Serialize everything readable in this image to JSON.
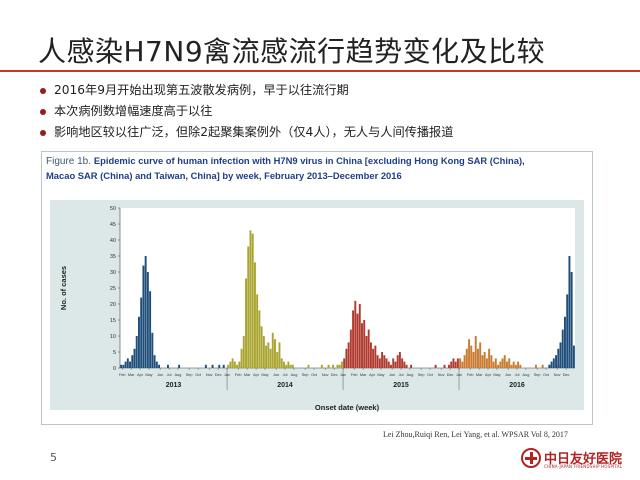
{
  "slide": {
    "title": "人感染H7N9禽流感流行趋势变化及比较",
    "bullets": [
      "2016年9月开始出现第五波散发病例，早于以往流行期",
      "本次病例数增幅速度高于以往",
      "影响地区较以往广泛，但除2起聚集案例外（仅4人），无人与人间传播报道"
    ],
    "citation": "Lei Zhou,Ruiqi Ren, Lei Yang, et al. WPSAR Vol 8, 2017",
    "page_number": "5",
    "logo": {
      "name": "中日友好医院",
      "subtitle": "CHINA-JAPAN FRIENDSHIP HOSPITAL",
      "color": "#b22222"
    }
  },
  "figure": {
    "label": "Figure 1b.",
    "caption_line1": "Epidemic curve of human infection with H7N9 virus in China [excluding Hong Kong SAR (China),",
    "caption_line2": "Macao SAR (China) and Taiwan, China] by week, February 2013–December 2016"
  },
  "chart_data": {
    "type": "bar",
    "title": "Epidemic curve of human infection with H7N9 virus in China [excluding Hong Kong SAR (China), Macao SAR (China) and Taiwan, China] by week, February 2013–December 2016",
    "xlabel": "Onset date (week)",
    "ylabel": "No. of cases",
    "ylim": [
      0,
      50
    ],
    "yticks": [
      0,
      5,
      10,
      15,
      20,
      25,
      30,
      35,
      40,
      45,
      50
    ],
    "grid": false,
    "month_ticks": [
      {
        "label": "Feb",
        "week": 1
      },
      {
        "label": "Mar",
        "week": 5
      },
      {
        "label": "Apr",
        "week": 9
      },
      {
        "label": "May",
        "week": 13
      },
      {
        "label": "Jun",
        "week": 18
      },
      {
        "label": "Jul",
        "week": 22
      },
      {
        "label": "Aug",
        "week": 26
      },
      {
        "label": "Sep",
        "week": 31
      },
      {
        "label": "Oct",
        "week": 35
      },
      {
        "label": "Nov",
        "week": 40
      },
      {
        "label": "Dec",
        "week": 44
      },
      {
        "label": "Jan",
        "week": 48
      },
      {
        "label": "Feb",
        "week": 53
      },
      {
        "label": "Mar",
        "week": 57
      },
      {
        "label": "Apr",
        "week": 61
      },
      {
        "label": "May",
        "week": 65
      },
      {
        "label": "Jun",
        "week": 70
      },
      {
        "label": "Jul",
        "week": 74
      },
      {
        "label": "Aug",
        "week": 78
      },
      {
        "label": "Sep",
        "week": 83
      },
      {
        "label": "Oct",
        "week": 87
      },
      {
        "label": "Nov",
        "week": 92
      },
      {
        "label": "Dec",
        "week": 96
      },
      {
        "label": "Jan",
        "week": 100
      },
      {
        "label": "Feb",
        "week": 105
      },
      {
        "label": "Mar",
        "week": 109
      },
      {
        "label": "Apr",
        "week": 113
      },
      {
        "label": "May",
        "week": 117
      },
      {
        "label": "Jun",
        "week": 122
      },
      {
        "label": "Jul",
        "week": 126
      },
      {
        "label": "Aug",
        "week": 130
      },
      {
        "label": "Sep",
        "week": 135
      },
      {
        "label": "Oct",
        "week": 139
      },
      {
        "label": "Nov",
        "week": 144
      },
      {
        "label": "Dec",
        "week": 148
      },
      {
        "label": "Jan",
        "week": 152
      },
      {
        "label": "Feb",
        "week": 157
      },
      {
        "label": "Mar",
        "week": 161
      },
      {
        "label": "Apr",
        "week": 165
      },
      {
        "label": "May",
        "week": 169
      },
      {
        "label": "Jun",
        "week": 174
      },
      {
        "label": "Jul",
        "week": 178
      },
      {
        "label": "Aug",
        "week": 182
      },
      {
        "label": "Sep",
        "week": 187
      },
      {
        "label": "Oct",
        "week": 191
      },
      {
        "label": "Nov",
        "week": 196
      },
      {
        "label": "Dec",
        "week": 200
      }
    ],
    "years": [
      {
        "label": "2013",
        "start_week": 0,
        "end_week": 47
      },
      {
        "label": "2014",
        "start_week": 48,
        "end_week": 99
      },
      {
        "label": "2015",
        "start_week": 100,
        "end_week": 151
      },
      {
        "label": "2016",
        "start_week": 152,
        "end_week": 203
      }
    ],
    "total_weeks": 204,
    "series": [
      {
        "color": "#1e4e79",
        "start_week": 0,
        "values": [
          1,
          1,
          2,
          3,
          2,
          4,
          6,
          10,
          16,
          22,
          32,
          35,
          30,
          24,
          11,
          4,
          2,
          1,
          0,
          0,
          0,
          1,
          0,
          0,
          0,
          0,
          1,
          0,
          0,
          0,
          0,
          0,
          0,
          0,
          0,
          0,
          0,
          0,
          1,
          0,
          0,
          1,
          0,
          0,
          1,
          0,
          1,
          0
        ]
      },
      {
        "color": "#aaa531",
        "start_week": 48,
        "values": [
          1,
          2,
          3,
          2,
          1,
          2,
          6,
          10,
          28,
          38,
          43,
          42,
          33,
          23,
          18,
          13,
          10,
          7,
          8,
          6,
          11,
          9,
          5,
          8,
          3,
          2,
          1,
          2,
          1,
          1,
          0,
          0,
          0,
          0,
          0,
          0,
          1,
          0,
          0,
          0,
          0,
          0,
          1,
          0,
          0,
          1,
          0,
          1,
          0,
          1,
          1,
          2
        ]
      },
      {
        "color": "#b03a2e",
        "start_week": 100,
        "values": [
          3,
          6,
          8,
          12,
          18,
          21,
          17,
          20,
          14,
          15,
          10,
          12,
          8,
          6,
          7,
          4,
          3,
          5,
          4,
          3,
          2,
          1,
          3,
          2,
          4,
          5,
          3,
          2,
          1,
          0,
          1,
          0,
          0,
          0,
          0,
          0,
          0,
          0,
          0,
          0,
          0,
          1,
          0,
          0,
          0,
          1,
          0,
          1,
          2,
          3,
          2,
          3
        ]
      },
      {
        "color": "#c97b30",
        "start_week": 152,
        "values": [
          3,
          2,
          4,
          6,
          9,
          7,
          5,
          10,
          6,
          8,
          4,
          5,
          3,
          6,
          4,
          2,
          3,
          1,
          2,
          3,
          4,
          2,
          3,
          1,
          2,
          1,
          2,
          1,
          0,
          0,
          0,
          0,
          0,
          0,
          1,
          0,
          0,
          1,
          0,
          0,
          1,
          0,
          0,
          0,
          1,
          1,
          0,
          0,
          0,
          0,
          0,
          0
        ]
      },
      {
        "color": "#1e4e79",
        "start_week": 192,
        "values": [
          1,
          2,
          3,
          4,
          6,
          8,
          12,
          16,
          23,
          35,
          30,
          7
        ]
      }
    ]
  }
}
